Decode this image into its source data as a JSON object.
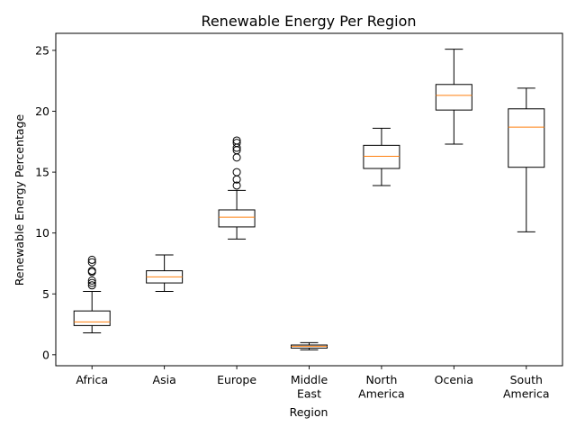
{
  "chart_data": {
    "type": "box",
    "title": "Renewable Energy Per Region",
    "xlabel": "Region",
    "ylabel": "Renewable Energy Percentage",
    "ylim": [
      -0.9,
      26.4
    ],
    "yticks": [
      0,
      5,
      10,
      15,
      20,
      25
    ],
    "grid": false,
    "colors": {
      "box": "#000000",
      "median": "#ff7f0e",
      "flier": "#000000"
    },
    "categories": [
      {
        "label_lines": [
          "Africa"
        ],
        "whisker_low": 1.8,
        "q1": 2.4,
        "median": 2.7,
        "q3": 3.6,
        "whisker_high": 5.2,
        "outliers": [
          5.7,
          5.9,
          6.1,
          6.8,
          6.9,
          7.6,
          7.8
        ]
      },
      {
        "label_lines": [
          "Asia"
        ],
        "whisker_low": 5.2,
        "q1": 5.9,
        "median": 6.4,
        "q3": 6.9,
        "whisker_high": 8.2,
        "outliers": []
      },
      {
        "label_lines": [
          "Europe"
        ],
        "whisker_low": 9.5,
        "q1": 10.5,
        "median": 11.3,
        "q3": 11.9,
        "whisker_high": 13.5,
        "outliers": [
          13.9,
          14.4,
          15.0,
          16.2,
          16.8,
          17.0,
          17.4,
          17.6
        ]
      },
      {
        "label_lines": [
          "Middle",
          "East"
        ],
        "whisker_low": 0.4,
        "q1": 0.55,
        "median": 0.7,
        "q3": 0.8,
        "whisker_high": 1.0,
        "outliers": []
      },
      {
        "label_lines": [
          "North",
          "America"
        ],
        "whisker_low": 13.9,
        "q1": 15.3,
        "median": 16.3,
        "q3": 17.2,
        "whisker_high": 18.6,
        "outliers": []
      },
      {
        "label_lines": [
          "Ocenia"
        ],
        "whisker_low": 17.3,
        "q1": 20.1,
        "median": 21.3,
        "q3": 22.2,
        "whisker_high": 25.1,
        "outliers": []
      },
      {
        "label_lines": [
          "South",
          "America"
        ],
        "whisker_low": 10.1,
        "q1": 15.4,
        "median": 18.7,
        "q3": 20.2,
        "whisker_high": 21.9,
        "outliers": []
      }
    ]
  }
}
